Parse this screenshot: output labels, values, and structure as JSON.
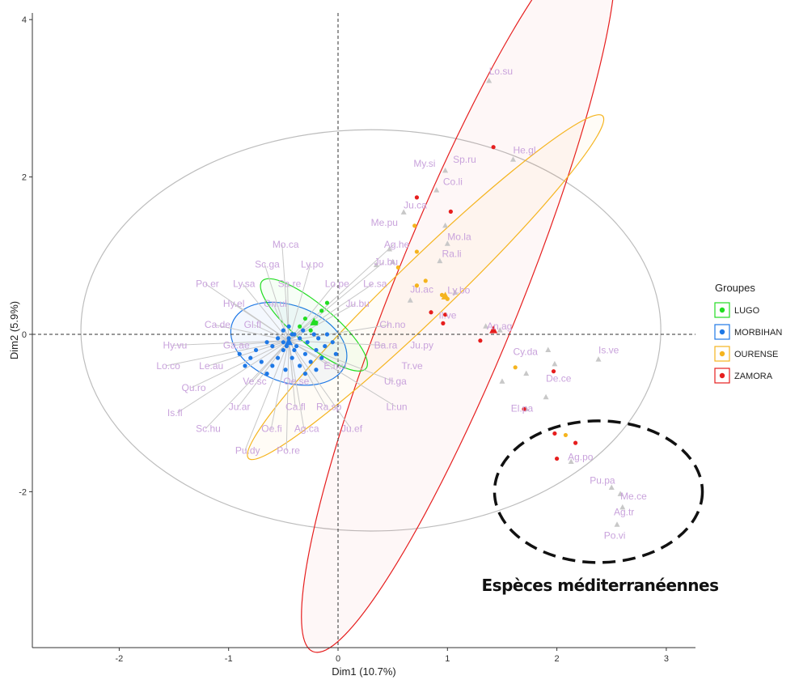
{
  "chart_data": {
    "type": "scatter",
    "xlabel": "Dim1 (10.7%)",
    "ylabel": "Dim2 (5.9%)",
    "xlim": [
      -2.7,
      3.3
    ],
    "ylim": [
      -3.95,
      4.05
    ],
    "x_ticks": [
      -2,
      -1,
      0,
      1,
      2,
      3
    ],
    "y_ticks": [
      -2,
      0,
      2,
      4
    ],
    "x_tick_labels": [
      "-2",
      "-1",
      "0",
      "1",
      "2",
      "3"
    ],
    "y_tick_labels": [
      "-2",
      "0",
      "2",
      "4"
    ],
    "grid": false,
    "legend": {
      "title": "Groupes",
      "position": "right",
      "entries": [
        "LUGO",
        "MORBIHAN",
        "OURENSE",
        "ZAMORA"
      ]
    },
    "colors": {
      "LUGO": "#22dd22",
      "MORBIHAN": "#1e78e6",
      "OURENSE": "#f5b41e",
      "ZAMORA": "#e61e1e",
      "species": "#c9a3dc",
      "species_marker": "#c8c8c8",
      "overall_ellipse": "#bdbdbd",
      "annotation": "#111111"
    },
    "annotation": {
      "label": "Espèces méditerranéennes",
      "circle_center": [
        2.38,
        -2.0
      ],
      "circle_radii": [
        0.95,
        0.9
      ]
    },
    "overall_ellipse": {
      "cx": 0.3,
      "cy": 0.05,
      "rx": 2.65,
      "ry": 2.55
    },
    "series": [
      {
        "name": "LUGO",
        "ellipse": {
          "cx": -0.22,
          "cy": 0.12,
          "rx": 0.62,
          "ry": 0.18,
          "angle_deg": -40
        },
        "points": [
          [
            -0.3,
            0.2
          ],
          [
            -0.2,
            0.15
          ],
          [
            -0.15,
            0.3
          ],
          [
            -0.1,
            0.4
          ],
          [
            -0.35,
            0.1
          ],
          [
            -0.25,
            0.05
          ]
        ]
      },
      {
        "name": "MORBIHAN",
        "ellipse": {
          "cx": -0.45,
          "cy": -0.12,
          "rx": 0.55,
          "ry": 0.35,
          "angle_deg": -20
        },
        "points": [
          [
            -0.8,
            -0.3
          ],
          [
            -0.75,
            -0.2
          ],
          [
            -0.7,
            -0.35
          ],
          [
            -0.65,
            -0.1
          ],
          [
            -0.6,
            -0.4
          ],
          [
            -0.6,
            -0.15
          ],
          [
            -0.55,
            -0.05
          ],
          [
            -0.55,
            -0.3
          ],
          [
            -0.5,
            0.05
          ],
          [
            -0.5,
            -0.2
          ],
          [
            -0.48,
            -0.45
          ],
          [
            -0.45,
            -0.1
          ],
          [
            -0.45,
            0.1
          ],
          [
            -0.42,
            -0.3
          ],
          [
            -0.4,
            0.0
          ],
          [
            -0.4,
            -0.2
          ],
          [
            -0.38,
            -0.15
          ],
          [
            -0.35,
            -0.05
          ],
          [
            -0.35,
            -0.4
          ],
          [
            -0.32,
            0.05
          ],
          [
            -0.3,
            -0.25
          ],
          [
            -0.28,
            -0.1
          ],
          [
            -0.25,
            -0.35
          ],
          [
            -0.22,
            0.0
          ],
          [
            -0.2,
            -0.2
          ],
          [
            -0.18,
            -0.05
          ],
          [
            -0.15,
            -0.3
          ],
          [
            -0.12,
            -0.15
          ],
          [
            -0.1,
            0.0
          ],
          [
            -0.05,
            -0.1
          ],
          [
            -0.02,
            -0.25
          ],
          [
            -0.5,
            -0.1
          ],
          [
            -0.45,
            -0.05
          ],
          [
            -0.42,
            0.0
          ],
          [
            -0.47,
            -0.15
          ],
          [
            -0.9,
            -0.25
          ],
          [
            -0.85,
            -0.4
          ],
          [
            -0.3,
            -0.5
          ],
          [
            -0.65,
            -0.5
          ],
          [
            -0.2,
            -0.45
          ]
        ]
      },
      {
        "name": "OURENSE",
        "ellipse": {
          "cx": 0.8,
          "cy": 0.6,
          "rx": 2.25,
          "ry": 0.26,
          "angle_deg": 44
        },
        "points": [
          [
            0.7,
            1.38
          ],
          [
            0.72,
            1.05
          ],
          [
            0.55,
            0.85
          ],
          [
            0.8,
            0.68
          ],
          [
            0.72,
            0.62
          ],
          [
            0.95,
            0.5
          ],
          [
            1.0,
            0.45
          ],
          [
            1.62,
            -0.42
          ],
          [
            2.08,
            -1.28
          ]
        ]
      },
      {
        "name": "ZAMORA",
        "ellipse": {
          "cx": 1.1,
          "cy": 0.55,
          "rx": 3.55,
          "ry": 0.58,
          "angle_deg": 68
        },
        "points": [
          [
            1.42,
            2.38
          ],
          [
            0.72,
            1.74
          ],
          [
            1.03,
            1.56
          ],
          [
            0.85,
            0.28
          ],
          [
            0.98,
            0.25
          ],
          [
            0.96,
            0.14
          ],
          [
            1.3,
            -0.08
          ],
          [
            1.42,
            0.05
          ],
          [
            1.97,
            -0.47
          ],
          [
            1.7,
            -0.95
          ],
          [
            1.98,
            -1.26
          ],
          [
            2.17,
            -1.38
          ],
          [
            2.0,
            -1.58
          ]
        ]
      }
    ],
    "species_labels": [
      {
        "label": "Lo.su",
        "x": 1.38,
        "y": 3.3
      },
      {
        "label": "He.gl",
        "x": 1.6,
        "y": 2.3
      },
      {
        "label": "Sp.ru",
        "x": 1.05,
        "y": 2.18
      },
      {
        "label": "My.si",
        "x": 0.69,
        "y": 2.13
      },
      {
        "label": "Co.li",
        "x": 0.96,
        "y": 1.9
      },
      {
        "label": "Ju.ca",
        "x": 0.6,
        "y": 1.6
      },
      {
        "label": "Me.pu",
        "x": 0.3,
        "y": 1.38
      },
      {
        "label": "Mo.la",
        "x": 1.0,
        "y": 1.2
      },
      {
        "label": "Ag.he",
        "x": 0.42,
        "y": 1.1
      },
      {
        "label": "Ra.li",
        "x": 0.95,
        "y": 0.98
      },
      {
        "label": "Ju.bu",
        "x": 0.33,
        "y": 0.88
      },
      {
        "label": "Ly.bo",
        "x": 1.0,
        "y": 0.52
      },
      {
        "label": "Ju.ac",
        "x": 0.66,
        "y": 0.53
      },
      {
        "label": "Il.ve",
        "x": 0.92,
        "y": 0.2
      },
      {
        "label": "An.ag",
        "x": 1.36,
        "y": 0.06
      },
      {
        "label": "Is.ve",
        "x": 2.38,
        "y": -0.24
      },
      {
        "label": "Cy.da",
        "x": 1.6,
        "y": -0.26
      },
      {
        "label": "De.ce",
        "x": 1.9,
        "y": -0.6
      },
      {
        "label": "El.pa",
        "x": 1.58,
        "y": -0.98
      },
      {
        "label": "Ag.po",
        "x": 2.1,
        "y": -1.6
      },
      {
        "label": "Pu.pa",
        "x": 2.3,
        "y": -1.9
      },
      {
        "label": "Me.ce",
        "x": 2.58,
        "y": -2.1
      },
      {
        "label": "Ag.tr",
        "x": 2.52,
        "y": -2.3
      },
      {
        "label": "Po.vi",
        "x": 2.43,
        "y": -2.6
      },
      {
        "label": "Mo.ca",
        "x": -0.6,
        "y": 1.1
      },
      {
        "label": "Sc.ga",
        "x": -0.76,
        "y": 0.85
      },
      {
        "label": "Ly.po",
        "x": -0.34,
        "y": 0.85
      },
      {
        "label": "Ly.sa",
        "x": -0.96,
        "y": 0.6
      },
      {
        "label": "Sa.re",
        "x": -0.55,
        "y": 0.6
      },
      {
        "label": "Lo.pe",
        "x": -0.12,
        "y": 0.6
      },
      {
        "label": "Le.sa",
        "x": 0.23,
        "y": 0.6
      },
      {
        "label": "Po.er",
        "x": -1.3,
        "y": 0.6
      },
      {
        "label": "Hy.el",
        "x": -1.05,
        "y": 0.35
      },
      {
        "label": "Gn.ul",
        "x": -0.68,
        "y": 0.35
      },
      {
        "label": "Ju.bu",
        "x": 0.07,
        "y": 0.35
      },
      {
        "label": "Ca.de",
        "x": -1.22,
        "y": 0.08
      },
      {
        "label": "Gl.fl",
        "x": -0.86,
        "y": 0.08
      },
      {
        "label": "Ch.no",
        "x": 0.38,
        "y": 0.08
      },
      {
        "label": "Hy.vu",
        "x": -1.6,
        "y": -0.18
      },
      {
        "label": "Ga.ae",
        "x": -1.05,
        "y": -0.18
      },
      {
        "label": "Ba.ra",
        "x": 0.33,
        "y": -0.18
      },
      {
        "label": "Ju.py",
        "x": 0.66,
        "y": -0.18
      },
      {
        "label": "Lo.co",
        "x": -1.66,
        "y": -0.44
      },
      {
        "label": "Le.au",
        "x": -1.27,
        "y": -0.44
      },
      {
        "label": "Tr.ve",
        "x": 0.58,
        "y": -0.44
      },
      {
        "label": "E.mu",
        "x": -0.13,
        "y": -0.44
      },
      {
        "label": "Qu.ro",
        "x": -1.43,
        "y": -0.72
      },
      {
        "label": "Ve.sc",
        "x": -0.87,
        "y": -0.64
      },
      {
        "label": "Oe.se",
        "x": -0.5,
        "y": -0.64
      },
      {
        "label": "Ul.ga",
        "x": 0.42,
        "y": -0.64
      },
      {
        "label": "Is.fl",
        "x": -1.56,
        "y": -1.04
      },
      {
        "label": "Ju.ar",
        "x": -1.0,
        "y": -0.96
      },
      {
        "label": "Ca.fl",
        "x": -0.48,
        "y": -0.96
      },
      {
        "label": "Ra.sp",
        "x": -0.2,
        "y": -0.96
      },
      {
        "label": "Li.un",
        "x": 0.44,
        "y": -0.96
      },
      {
        "label": "Sc.hu",
        "x": -1.3,
        "y": -1.24
      },
      {
        "label": "Oe.fi",
        "x": -0.7,
        "y": -1.24
      },
      {
        "label": "Ag.ca",
        "x": -0.4,
        "y": -1.24
      },
      {
        "label": "Ju.ef",
        "x": 0.03,
        "y": -1.24
      },
      {
        "label": "Pu.dy",
        "x": -0.94,
        "y": -1.52
      },
      {
        "label": "Po.re",
        "x": -0.56,
        "y": -1.52
      }
    ],
    "species_markers": [
      [
        1.38,
        3.22
      ],
      [
        1.6,
        2.22
      ],
      [
        0.98,
        2.08
      ],
      [
        0.9,
        1.83
      ],
      [
        0.6,
        1.55
      ],
      [
        0.98,
        1.38
      ],
      [
        1.0,
        1.15
      ],
      [
        0.93,
        0.93
      ],
      [
        0.35,
        0.88
      ],
      [
        0.47,
        1.08
      ],
      [
        0.66,
        0.43
      ],
      [
        1.07,
        0.53
      ],
      [
        1.35,
        0.1
      ],
      [
        1.48,
        0.05
      ],
      [
        1.92,
        -0.2
      ],
      [
        1.98,
        -0.38
      ],
      [
        1.9,
        -0.8
      ],
      [
        1.5,
        -0.6
      ],
      [
        2.38,
        -0.32
      ],
      [
        2.13,
        -1.62
      ],
      [
        2.5,
        -1.95
      ],
      [
        2.58,
        -2.03
      ],
      [
        2.6,
        -2.2
      ],
      [
        2.55,
        -2.42
      ],
      [
        1.72,
        -0.95
      ],
      [
        0.5,
        0.92
      ],
      [
        1.72,
        -0.5
      ]
    ]
  }
}
